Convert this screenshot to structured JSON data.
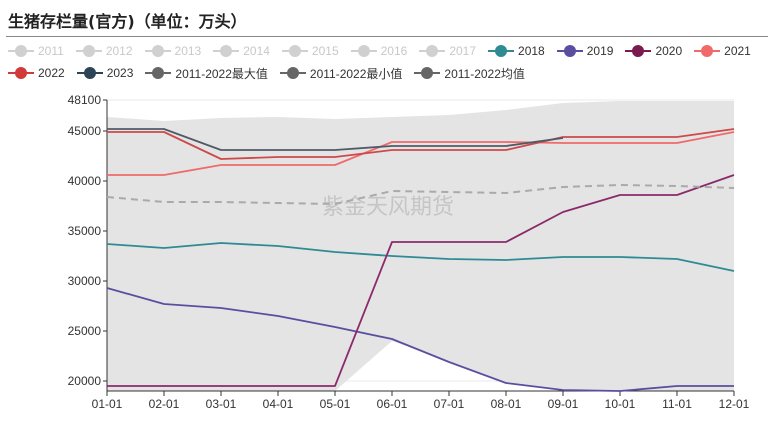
{
  "title": "生猪存栏量(官方)（单位：万头）",
  "watermark": "紫金天风期货",
  "legend": [
    {
      "label": "2011",
      "color": "#cccccc",
      "active": false
    },
    {
      "label": "2012",
      "color": "#cccccc",
      "active": false
    },
    {
      "label": "2013",
      "color": "#cccccc",
      "active": false
    },
    {
      "label": "2014",
      "color": "#cccccc",
      "active": false
    },
    {
      "label": "2015",
      "color": "#cccccc",
      "active": false
    },
    {
      "label": "2016",
      "color": "#cccccc",
      "active": false
    },
    {
      "label": "2017",
      "color": "#cccccc",
      "active": false
    },
    {
      "label": "2018",
      "color": "#2e8b93",
      "active": true
    },
    {
      "label": "2019",
      "color": "#5b4ea0",
      "active": true
    },
    {
      "label": "2020",
      "color": "#7a1a50",
      "active": true
    },
    {
      "label": "2021",
      "color": "#f06a6a",
      "active": true
    },
    {
      "label": "2022",
      "color": "#d23a3a",
      "active": true
    },
    {
      "label": "2023",
      "color": "#2d4456",
      "active": true
    },
    {
      "label": "2011-2022最大值",
      "color": "#666666",
      "active": true
    },
    {
      "label": "2011-2022最小值",
      "color": "#666666",
      "active": true
    },
    {
      "label": "2011-2022均值",
      "color": "#666666",
      "active": true
    }
  ],
  "chart_data": {
    "type": "line",
    "categories": [
      "01-01",
      "02-01",
      "03-01",
      "04-01",
      "05-01",
      "06-01",
      "07-01",
      "08-01",
      "09-01",
      "10-01",
      "11-01",
      "12-01"
    ],
    "ylim": [
      19000,
      48100
    ],
    "yticks": [
      20000,
      25000,
      30000,
      35000,
      40000,
      45000,
      48100
    ],
    "band": {
      "upper": [
        46400,
        46000,
        46300,
        46400,
        46200,
        46400,
        46600,
        47100,
        47800,
        48000,
        48000,
        48000
      ],
      "lower": [
        19000,
        19000,
        19000,
        19000,
        19000,
        24000,
        22000,
        19800,
        19200,
        19000,
        19000,
        19000
      ],
      "color": "#e4e4e4"
    },
    "series": [
      {
        "name": "2018",
        "color": "#2e8b93",
        "values": [
          33700,
          33300,
          33800,
          33500,
          32900,
          32500,
          32200,
          32100,
          32400,
          32400,
          32200,
          31000
        ]
      },
      {
        "name": "2019",
        "color": "#5b4ea0",
        "values": [
          29300,
          27700,
          27300,
          26500,
          25400,
          24200,
          21900,
          19800,
          19100,
          19000,
          19500,
          19500
        ]
      },
      {
        "name": "2020",
        "color": "#8a2a6a",
        "values": [
          19500,
          19500,
          19500,
          19500,
          19500,
          33900,
          33900,
          33900,
          36900,
          38600,
          38600,
          40600
        ]
      },
      {
        "name": "2021",
        "color": "#f06a6a",
        "values": [
          40600,
          40600,
          41600,
          41600,
          41600,
          43900,
          43900,
          43900,
          43800,
          43800,
          43800,
          44900
        ]
      },
      {
        "name": "2022",
        "color": "#cc4a4a",
        "values": [
          44900,
          44900,
          42200,
          42400,
          42400,
          43100,
          43100,
          43100,
          44400,
          44400,
          44400,
          45200
        ]
      },
      {
        "name": "2023",
        "color": "#505a66",
        "values": [
          45200,
          45200,
          43100,
          43100,
          43100,
          43500,
          43500,
          43500,
          44300,
          null,
          null,
          null
        ]
      },
      {
        "name": "2011-2022均值",
        "color": "#aaaaaa",
        "dashed": true,
        "values": [
          38400,
          37900,
          37900,
          37800,
          37700,
          39000,
          38900,
          38800,
          39400,
          39600,
          39500,
          39300
        ]
      }
    ]
  }
}
